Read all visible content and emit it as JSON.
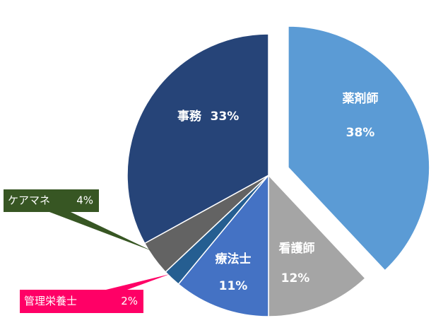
{
  "chart_data": {
    "type": "pie",
    "categories": [
      "薬剤師",
      "看護師",
      "療法士",
      "管理栄養士",
      "ケアマネ",
      "事務"
    ],
    "values": [
      38,
      12,
      11,
      2,
      4,
      33
    ],
    "value_labels": [
      "38%",
      "12%",
      "11%",
      "2%",
      "4%",
      "33%"
    ],
    "colors": [
      "#5b9bd5",
      "#a5a5a5",
      "#4472c4",
      "#255e91",
      "#636363",
      "#264478"
    ]
  }
}
